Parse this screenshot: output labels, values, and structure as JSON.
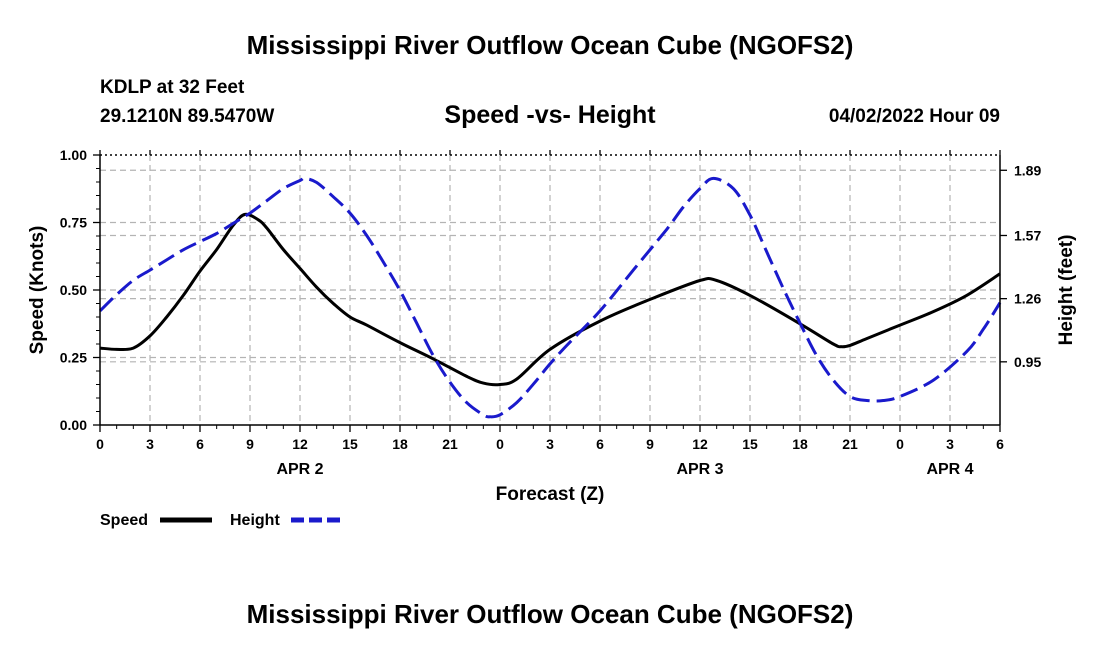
{
  "page": {
    "title": "Mississippi River Outflow Ocean Cube (NGOFS2)",
    "station": "KDLP at 32 Feet",
    "coords": "29.1210N  89.5470W",
    "chart_title": "Speed -vs- Height",
    "datetime": "04/02/2022 Hour 09",
    "footer_title": "Mississippi River Outflow Ocean Cube (NGOFS2)"
  },
  "legend": {
    "speed": "Speed",
    "height": "Height"
  },
  "colors": {
    "speed": "#000000",
    "height": "#1a1acc",
    "grid": "#b4b4b4"
  },
  "chart_data": {
    "type": "line",
    "title": "Speed -vs- Height",
    "xlabel": "Forecast (Z)",
    "ylabel": "Speed (Knots)",
    "y2label": "Height (feet)",
    "xlim": [
      0,
      54
    ],
    "ylim": [
      0,
      1.0
    ],
    "y2lim": [
      0.64,
      1.965
    ],
    "x_ticks": [
      0,
      3,
      6,
      9,
      12,
      15,
      18,
      21,
      24,
      27,
      30,
      33,
      36,
      39,
      42,
      45,
      48,
      51,
      54
    ],
    "x_tick_labels": [
      "0",
      "3",
      "6",
      "9",
      "12",
      "15",
      "18",
      "21",
      "0",
      "3",
      "6",
      "9",
      "12",
      "15",
      "18",
      "21",
      "0",
      "3",
      "6"
    ],
    "y_ticks": [
      0,
      0.25,
      0.5,
      0.75,
      1.0
    ],
    "y_tick_labels": [
      "0.00",
      "0.25",
      "0.50",
      "0.75",
      "1.00"
    ],
    "y2_ticks": [
      0.95,
      1.26,
      1.57,
      1.89
    ],
    "y2_tick_labels": [
      "0.95",
      "1.26",
      "1.57",
      "1.89"
    ],
    "date_labels": [
      {
        "x": 12,
        "label": "APR 2"
      },
      {
        "x": 36,
        "label": "APR 3"
      },
      {
        "x": 51,
        "label": "APR 4"
      }
    ],
    "series": [
      {
        "name": "Speed",
        "axis": "left",
        "style": "solid",
        "x": [
          0,
          1,
          2,
          3,
          4,
          5,
          6,
          7,
          8,
          8.7,
          9.5,
          10,
          11,
          12,
          13,
          14,
          15,
          16,
          18,
          20,
          22,
          23,
          24,
          25,
          27,
          30,
          33,
          36,
          37,
          39,
          42,
          44,
          44.5,
          45,
          46,
          48,
          50,
          52,
          54
        ],
        "values": [
          0.285,
          0.28,
          0.285,
          0.33,
          0.4,
          0.48,
          0.57,
          0.65,
          0.74,
          0.78,
          0.76,
          0.73,
          0.65,
          0.58,
          0.51,
          0.45,
          0.4,
          0.37,
          0.305,
          0.245,
          0.18,
          0.155,
          0.15,
          0.17,
          0.28,
          0.385,
          0.465,
          0.535,
          0.535,
          0.48,
          0.375,
          0.3,
          0.29,
          0.295,
          0.32,
          0.37,
          0.42,
          0.48,
          0.56
        ]
      },
      {
        "name": "Height",
        "axis": "right",
        "style": "dashed",
        "x": [
          0,
          1,
          2,
          3,
          4,
          5,
          6,
          7,
          8,
          9,
          10,
          11,
          12,
          12.3,
          13,
          14,
          15,
          16,
          17,
          18,
          19,
          20,
          21,
          22,
          23,
          23.4,
          24,
          25,
          26,
          27,
          28,
          30,
          32,
          34,
          35,
          36,
          36.8,
          38,
          39,
          40,
          41,
          42,
          43,
          44,
          45,
          46,
          47,
          48,
          50,
          52,
          53,
          54
        ],
        "values": [
          1.2,
          1.28,
          1.35,
          1.4,
          1.45,
          1.5,
          1.54,
          1.58,
          1.63,
          1.68,
          1.74,
          1.8,
          1.84,
          1.85,
          1.83,
          1.76,
          1.68,
          1.57,
          1.44,
          1.3,
          1.14,
          0.98,
          0.85,
          0.75,
          0.69,
          0.68,
          0.69,
          0.75,
          0.84,
          0.94,
          1.03,
          1.2,
          1.4,
          1.6,
          1.71,
          1.8,
          1.85,
          1.8,
          1.67,
          1.49,
          1.31,
          1.14,
          0.98,
          0.86,
          0.78,
          0.76,
          0.76,
          0.78,
          0.86,
          1.0,
          1.11,
          1.24
        ]
      }
    ]
  }
}
